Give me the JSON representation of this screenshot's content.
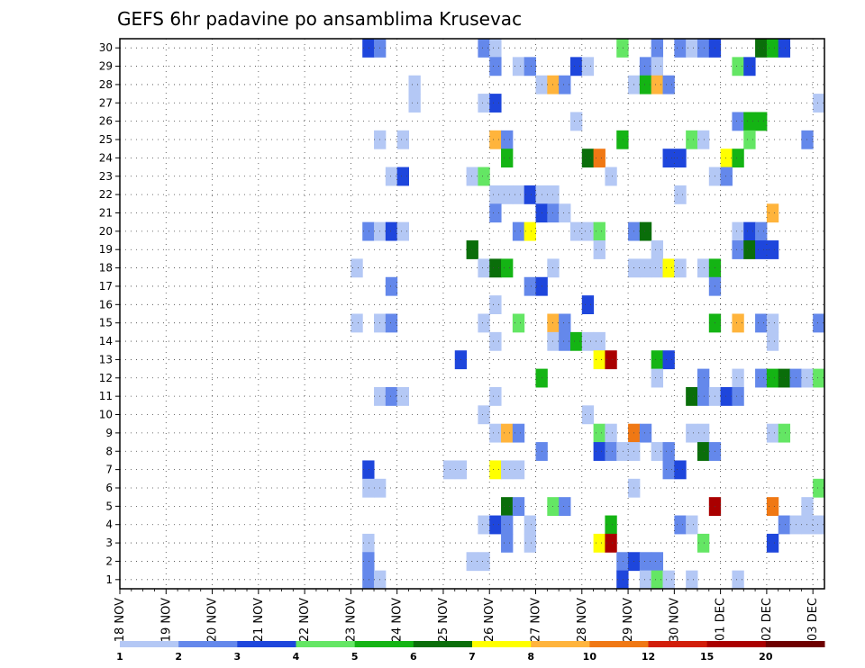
{
  "chart_data": {
    "type": "heatmap",
    "title": "GEFS 6hr padavine po ansamblima Krusevac",
    "y_tick_labels": [
      "1",
      "2",
      "3",
      "4",
      "5",
      "6",
      "7",
      "8",
      "9",
      "10",
      "11",
      "12",
      "13",
      "14",
      "15",
      "16",
      "17",
      "18",
      "19",
      "20",
      "21",
      "22",
      "23",
      "24",
      "25",
      "26",
      "27",
      "28",
      "29",
      "30"
    ],
    "x_tick_labels": [
      "18 NOV",
      "19 NOV",
      "20 NOV",
      "21 NOV",
      "22 NOV",
      "23 NOV",
      "24 NOV",
      "25 NOV",
      "26 NOV",
      "27 NOV",
      "28 NOV",
      "29 NOV",
      "30 NOV",
      "01 DEC",
      "02 DEC",
      "03 DEC"
    ],
    "x_range_steps": [
      0,
      61
    ],
    "y_range": [
      0,
      30
    ],
    "grid": true,
    "legend": {
      "placement": "bottom",
      "colors": [
        "#b4c8f5",
        "#6488eb",
        "#1e46dc",
        "#64e664",
        "#14b414",
        "#0a6e0a",
        "#ffff00",
        "#ffb43c",
        "#f07814",
        "#d21e0a",
        "#aa0000",
        "#6e0000"
      ],
      "tick_labels": [
        "1",
        "2",
        "3",
        "4",
        "5",
        "6",
        "7",
        "8",
        "10",
        "12",
        "15",
        "20"
      ]
    },
    "cell_value_note_levels": "each cell value is an index into legend.colors (1 = first colour)",
    "cells": [
      [
        21,
        30,
        3
      ],
      [
        22,
        30,
        2
      ],
      [
        31,
        30,
        2
      ],
      [
        32,
        30,
        1
      ],
      [
        43,
        30,
        4
      ],
      [
        46,
        30,
        2
      ],
      [
        48,
        30,
        2
      ],
      [
        49,
        30,
        1
      ],
      [
        50,
        30,
        2
      ],
      [
        51,
        30,
        3
      ],
      [
        55,
        30,
        6
      ],
      [
        56,
        30,
        5
      ],
      [
        57,
        30,
        3
      ],
      [
        32,
        29,
        2
      ],
      [
        34,
        29,
        1
      ],
      [
        35,
        29,
        2
      ],
      [
        39,
        29,
        3
      ],
      [
        40,
        29,
        1
      ],
      [
        45,
        29,
        2
      ],
      [
        46,
        29,
        1
      ],
      [
        53,
        29,
        4
      ],
      [
        54,
        29,
        3
      ],
      [
        25,
        28,
        1
      ],
      [
        36,
        28,
        1
      ],
      [
        37,
        28,
        8
      ],
      [
        38,
        28,
        2
      ],
      [
        44,
        28,
        1
      ],
      [
        45,
        28,
        5
      ],
      [
        46,
        28,
        8
      ],
      [
        47,
        28,
        2
      ],
      [
        25,
        27,
        1
      ],
      [
        31,
        27,
        1
      ],
      [
        32,
        27,
        3
      ],
      [
        60,
        27,
        1
      ],
      [
        39,
        26,
        1
      ],
      [
        53,
        26,
        2
      ],
      [
        54,
        26,
        5
      ],
      [
        55,
        26,
        5
      ],
      [
        22,
        25,
        1
      ],
      [
        24,
        25,
        1
      ],
      [
        32,
        25,
        8
      ],
      [
        33,
        25,
        2
      ],
      [
        43,
        25,
        5
      ],
      [
        49,
        25,
        4
      ],
      [
        50,
        25,
        1
      ],
      [
        54,
        25,
        4
      ],
      [
        59,
        25,
        2
      ],
      [
        33,
        24,
        5
      ],
      [
        40,
        24,
        6
      ],
      [
        41,
        24,
        9
      ],
      [
        47,
        24,
        3
      ],
      [
        48,
        24,
        3
      ],
      [
        52,
        24,
        7
      ],
      [
        53,
        24,
        5
      ],
      [
        23,
        23,
        1
      ],
      [
        24,
        23,
        3
      ],
      [
        30,
        23,
        1
      ],
      [
        31,
        23,
        4
      ],
      [
        42,
        23,
        1
      ],
      [
        51,
        23,
        1
      ],
      [
        52,
        23,
        2
      ],
      [
        32,
        22,
        1
      ],
      [
        33,
        22,
        1
      ],
      [
        34,
        22,
        1
      ],
      [
        35,
        22,
        3
      ],
      [
        36,
        22,
        1
      ],
      [
        37,
        22,
        1
      ],
      [
        48,
        22,
        1
      ],
      [
        32,
        21,
        2
      ],
      [
        36,
        21,
        3
      ],
      [
        37,
        21,
        2
      ],
      [
        38,
        21,
        1
      ],
      [
        56,
        21,
        8
      ],
      [
        21,
        20,
        2
      ],
      [
        22,
        20,
        1
      ],
      [
        23,
        20,
        3
      ],
      [
        24,
        20,
        1
      ],
      [
        34,
        20,
        2
      ],
      [
        35,
        20,
        7
      ],
      [
        39,
        20,
        1
      ],
      [
        40,
        20,
        1
      ],
      [
        41,
        20,
        4
      ],
      [
        44,
        20,
        2
      ],
      [
        45,
        20,
        6
      ],
      [
        53,
        20,
        1
      ],
      [
        54,
        20,
        3
      ],
      [
        55,
        20,
        2
      ],
      [
        30,
        19,
        6
      ],
      [
        41,
        19,
        1
      ],
      [
        46,
        19,
        1
      ],
      [
        53,
        19,
        2
      ],
      [
        54,
        19,
        6
      ],
      [
        55,
        19,
        3
      ],
      [
        56,
        19,
        3
      ],
      [
        20,
        18,
        1
      ],
      [
        31,
        18,
        1
      ],
      [
        32,
        18,
        6
      ],
      [
        33,
        18,
        5
      ],
      [
        37,
        18,
        1
      ],
      [
        44,
        18,
        1
      ],
      [
        45,
        18,
        1
      ],
      [
        46,
        18,
        1
      ],
      [
        47,
        18,
        7
      ],
      [
        48,
        18,
        1
      ],
      [
        50,
        18,
        1
      ],
      [
        51,
        18,
        5
      ],
      [
        23,
        17,
        2
      ],
      [
        35,
        17,
        2
      ],
      [
        36,
        17,
        3
      ],
      [
        51,
        17,
        2
      ],
      [
        32,
        16,
        1
      ],
      [
        40,
        16,
        3
      ],
      [
        20,
        15,
        1
      ],
      [
        22,
        15,
        1
      ],
      [
        23,
        15,
        2
      ],
      [
        31,
        15,
        1
      ],
      [
        34,
        15,
        4
      ],
      [
        37,
        15,
        8
      ],
      [
        38,
        15,
        2
      ],
      [
        51,
        15,
        5
      ],
      [
        53,
        15,
        8
      ],
      [
        55,
        15,
        2
      ],
      [
        56,
        15,
        1
      ],
      [
        60,
        15,
        2
      ],
      [
        32,
        14,
        1
      ],
      [
        37,
        14,
        1
      ],
      [
        38,
        14,
        2
      ],
      [
        39,
        14,
        5
      ],
      [
        40,
        14,
        1
      ],
      [
        41,
        14,
        1
      ],
      [
        56,
        14,
        1
      ],
      [
        29,
        13,
        3
      ],
      [
        41,
        13,
        7
      ],
      [
        42,
        13,
        11
      ],
      [
        46,
        13,
        5
      ],
      [
        47,
        13,
        3
      ],
      [
        36,
        12,
        5
      ],
      [
        46,
        12,
        1
      ],
      [
        50,
        12,
        2
      ],
      [
        53,
        12,
        1
      ],
      [
        55,
        12,
        2
      ],
      [
        56,
        12,
        5
      ],
      [
        57,
        12,
        6
      ],
      [
        58,
        12,
        2
      ],
      [
        59,
        12,
        1
      ],
      [
        60,
        12,
        4
      ],
      [
        22,
        11,
        1
      ],
      [
        23,
        11,
        2
      ],
      [
        24,
        11,
        1
      ],
      [
        32,
        11,
        1
      ],
      [
        49,
        11,
        6
      ],
      [
        50,
        11,
        2
      ],
      [
        51,
        11,
        1
      ],
      [
        52,
        11,
        3
      ],
      [
        53,
        11,
        2
      ],
      [
        31,
        10,
        1
      ],
      [
        40,
        10,
        1
      ],
      [
        32,
        9,
        1
      ],
      [
        33,
        9,
        8
      ],
      [
        34,
        9,
        2
      ],
      [
        41,
        9,
        4
      ],
      [
        42,
        9,
        1
      ],
      [
        44,
        9,
        9
      ],
      [
        45,
        9,
        2
      ],
      [
        49,
        9,
        1
      ],
      [
        50,
        9,
        1
      ],
      [
        56,
        9,
        1
      ],
      [
        57,
        9,
        4
      ],
      [
        36,
        8,
        2
      ],
      [
        41,
        8,
        3
      ],
      [
        42,
        8,
        2
      ],
      [
        43,
        8,
        1
      ],
      [
        44,
        8,
        1
      ],
      [
        46,
        8,
        1
      ],
      [
        47,
        8,
        2
      ],
      [
        50,
        8,
        6
      ],
      [
        51,
        8,
        2
      ],
      [
        21,
        7,
        3
      ],
      [
        28,
        7,
        1
      ],
      [
        29,
        7,
        1
      ],
      [
        32,
        7,
        7
      ],
      [
        33,
        7,
        1
      ],
      [
        34,
        7,
        1
      ],
      [
        47,
        7,
        2
      ],
      [
        48,
        7,
        3
      ],
      [
        21,
        6,
        1
      ],
      [
        22,
        6,
        1
      ],
      [
        44,
        6,
        1
      ],
      [
        60,
        6,
        4
      ],
      [
        33,
        5,
        6
      ],
      [
        34,
        5,
        2
      ],
      [
        37,
        5,
        4
      ],
      [
        38,
        5,
        2
      ],
      [
        51,
        5,
        11
      ],
      [
        56,
        5,
        9
      ],
      [
        59,
        5,
        1
      ],
      [
        31,
        4,
        1
      ],
      [
        32,
        4,
        3
      ],
      [
        33,
        4,
        2
      ],
      [
        35,
        4,
        1
      ],
      [
        42,
        4,
        5
      ],
      [
        48,
        4,
        2
      ],
      [
        49,
        4,
        1
      ],
      [
        57,
        4,
        2
      ],
      [
        58,
        4,
        1
      ],
      [
        59,
        4,
        1
      ],
      [
        60,
        4,
        1
      ],
      [
        21,
        3,
        1
      ],
      [
        33,
        3,
        2
      ],
      [
        35,
        3,
        1
      ],
      [
        41,
        3,
        7
      ],
      [
        42,
        3,
        11
      ],
      [
        50,
        3,
        4
      ],
      [
        56,
        3,
        3
      ],
      [
        21,
        2,
        2
      ],
      [
        30,
        2,
        1
      ],
      [
        31,
        2,
        1
      ],
      [
        43,
        2,
        2
      ],
      [
        44,
        2,
        3
      ],
      [
        45,
        2,
        2
      ],
      [
        46,
        2,
        2
      ],
      [
        21,
        1,
        2
      ],
      [
        22,
        1,
        1
      ],
      [
        43,
        1,
        3
      ],
      [
        45,
        1,
        1
      ],
      [
        46,
        1,
        4
      ],
      [
        47,
        1,
        1
      ],
      [
        49,
        1,
        1
      ],
      [
        53,
        1,
        1
      ]
    ]
  }
}
